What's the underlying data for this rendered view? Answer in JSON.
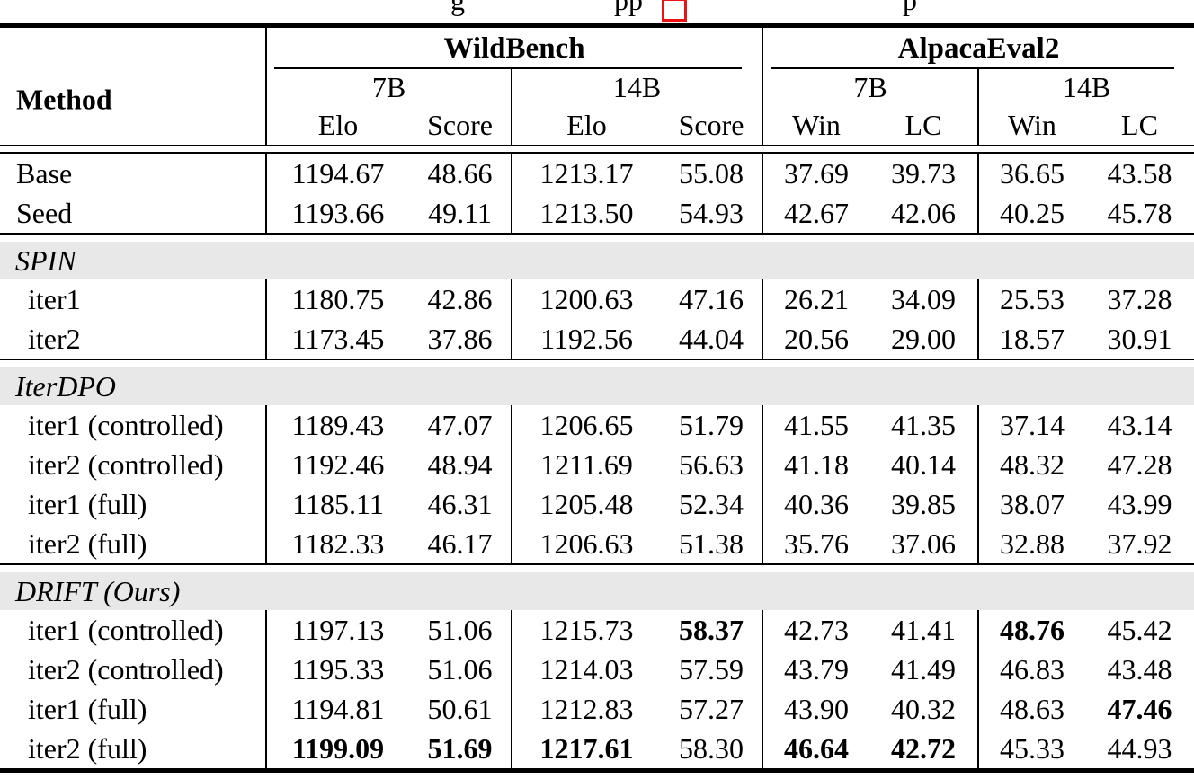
{
  "caption": {
    "fragment_left": "g",
    "fragment_mid": "pp",
    "fragment_right": "p"
  },
  "header": {
    "method_label": "Method",
    "groups": [
      {
        "label": "WildBench",
        "subgroups": [
          {
            "label": "7B",
            "cols": [
              "Elo",
              "Score"
            ]
          },
          {
            "label": "14B",
            "cols": [
              "Elo",
              "Score"
            ]
          }
        ]
      },
      {
        "label": "AlpacaEval2",
        "subgroups": [
          {
            "label": "7B",
            "cols": [
              "Win",
              "LC"
            ]
          },
          {
            "label": "14B",
            "cols": [
              "Win",
              "LC"
            ]
          }
        ]
      }
    ]
  },
  "sections": [
    {
      "header": "",
      "rows": [
        {
          "method": "Base",
          "values": [
            "1194.67",
            "48.66",
            "1213.17",
            "55.08",
            "37.69",
            "39.73",
            "36.65",
            "43.58"
          ],
          "bold": []
        },
        {
          "method": "Seed",
          "values": [
            "1193.66",
            "49.11",
            "1213.50",
            "54.93",
            "42.67",
            "42.06",
            "40.25",
            "45.78"
          ],
          "bold": []
        }
      ]
    },
    {
      "header": "SPIN",
      "rows": [
        {
          "method": "iter1",
          "values": [
            "1180.75",
            "42.86",
            "1200.63",
            "47.16",
            "26.21",
            "34.09",
            "25.53",
            "37.28"
          ],
          "bold": []
        },
        {
          "method": "iter2",
          "values": [
            "1173.45",
            "37.86",
            "1192.56",
            "44.04",
            "20.56",
            "29.00",
            "18.57",
            "30.91"
          ],
          "bold": []
        }
      ]
    },
    {
      "header": "IterDPO",
      "rows": [
        {
          "method": "iter1 (controlled)",
          "values": [
            "1189.43",
            "47.07",
            "1206.65",
            "51.79",
            "41.55",
            "41.35",
            "37.14",
            "43.14"
          ],
          "bold": []
        },
        {
          "method": "iter2 (controlled)",
          "values": [
            "1192.46",
            "48.94",
            "1211.69",
            "56.63",
            "41.18",
            "40.14",
            "48.32",
            "47.28"
          ],
          "bold": []
        },
        {
          "method": "iter1 (full)",
          "values": [
            "1185.11",
            "46.31",
            "1205.48",
            "52.34",
            "40.36",
            "39.85",
            "38.07",
            "43.99"
          ],
          "bold": []
        },
        {
          "method": "iter2 (full)",
          "values": [
            "1182.33",
            "46.17",
            "1206.63",
            "51.38",
            "35.76",
            "37.06",
            "32.88",
            "37.92"
          ],
          "bold": []
        }
      ]
    },
    {
      "header": "DRIFT (Ours)",
      "rows": [
        {
          "method": "iter1 (controlled)",
          "values": [
            "1197.13",
            "51.06",
            "1215.73",
            "58.37",
            "42.73",
            "41.41",
            "48.76",
            "45.42"
          ],
          "bold": [
            3,
            6
          ]
        },
        {
          "method": "iter2 (controlled)",
          "values": [
            "1195.33",
            "51.06",
            "1214.03",
            "57.59",
            "43.79",
            "41.49",
            "46.83",
            "43.48"
          ],
          "bold": []
        },
        {
          "method": "iter1 (full)",
          "values": [
            "1194.81",
            "50.61",
            "1212.83",
            "57.27",
            "43.90",
            "40.32",
            "48.63",
            "47.46"
          ],
          "bold": [
            7
          ]
        },
        {
          "method": "iter2 (full)",
          "values": [
            "1199.09",
            "51.69",
            "1217.61",
            "58.30",
            "46.64",
            "42.72",
            "45.33",
            "44.93"
          ],
          "bold": [
            0,
            1,
            2,
            4,
            5
          ]
        }
      ]
    }
  ],
  "colors": {
    "section_band": "#e8e8e8",
    "rule": "#000000",
    "link_box": "#ee1111"
  }
}
